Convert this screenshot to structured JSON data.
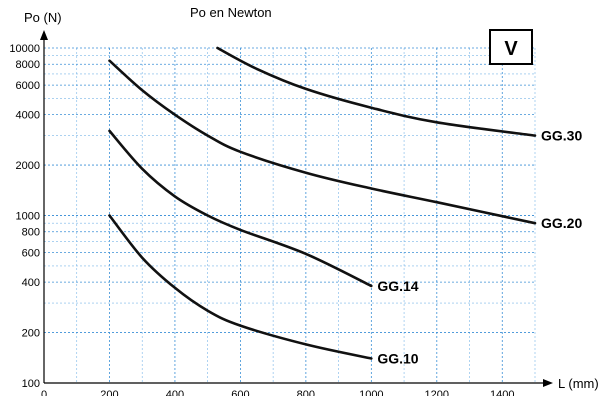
{
  "chart_data": {
    "type": "line",
    "title": "Po en Newton",
    "ylabel": "Po (N)",
    "xlabel": "L (mm)",
    "badge": "V",
    "yscale": "log",
    "xlim": [
      0,
      1500
    ],
    "ylim": [
      100,
      10000
    ],
    "x_ticks": [
      "0",
      "200",
      "400",
      "600",
      "800",
      "1000",
      "1200",
      "1400"
    ],
    "y_ticks": [
      "100",
      "200",
      "400",
      "600",
      "800",
      "1000",
      "2000",
      "4000",
      "6000",
      "8000",
      "10000"
    ],
    "grid": true,
    "series": [
      {
        "name": "GG.30",
        "x": [
          530,
          650,
          800,
          1000,
          1200,
          1500
        ],
        "y": [
          10000,
          7500,
          5700,
          4400,
          3600,
          3000
        ]
      },
      {
        "name": "GG.20",
        "x": [
          200,
          300,
          400,
          500,
          600,
          800,
          1000,
          1200,
          1500
        ],
        "y": [
          8400,
          5600,
          4000,
          3000,
          2400,
          1800,
          1450,
          1200,
          900
        ]
      },
      {
        "name": "GG.14",
        "x": [
          200,
          300,
          400,
          500,
          600,
          800,
          1000
        ],
        "y": [
          3200,
          1900,
          1300,
          1000,
          820,
          590,
          380
        ]
      },
      {
        "name": "GG.10",
        "x": [
          200,
          300,
          400,
          500,
          600,
          800,
          1000
        ],
        "y": [
          1000,
          560,
          370,
          270,
          220,
          170,
          140
        ]
      }
    ]
  }
}
